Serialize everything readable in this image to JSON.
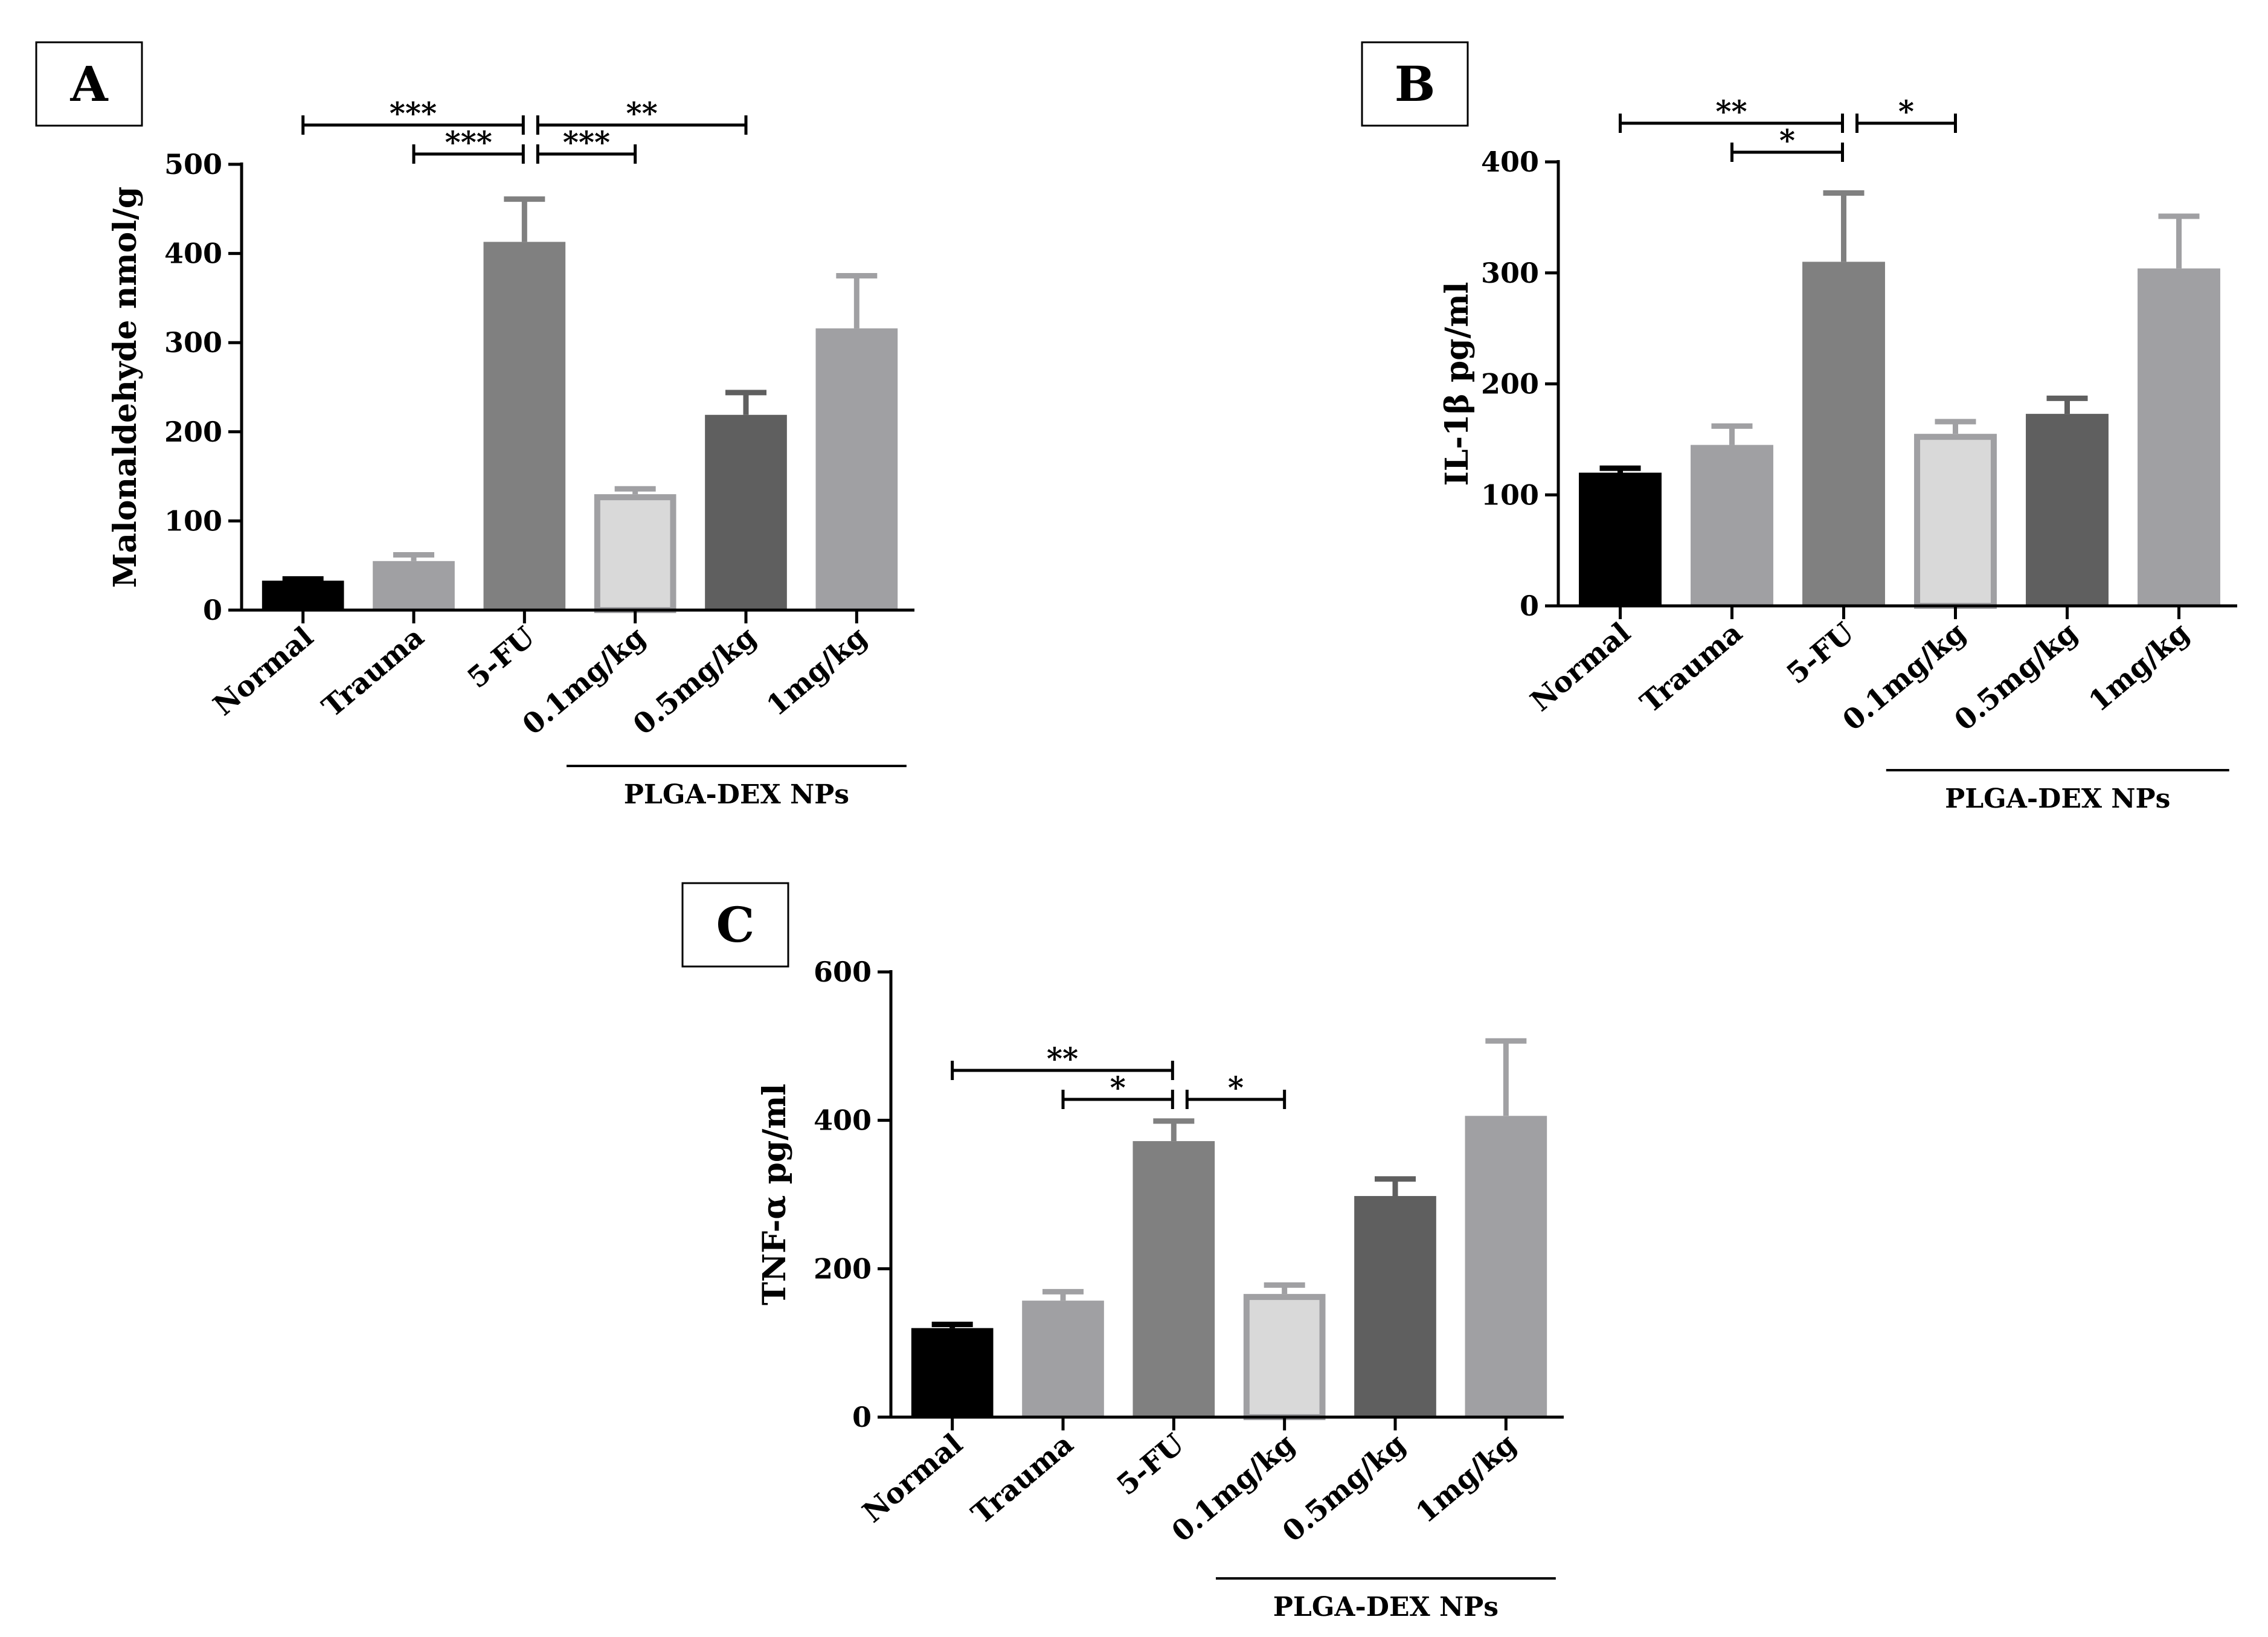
{
  "chart_data": [
    {
      "panel": "A",
      "type": "bar",
      "ylabel": "Malonaldehyde nmol/g",
      "yticks": [
        "0",
        "100",
        "200",
        "300",
        "400",
        "500"
      ],
      "ylim": [
        0,
        500
      ],
      "categories": [
        "Normal",
        "Trauma",
        "5-FU",
        "0.1mg/kg",
        "0.5mg/kg",
        "1mg/kg"
      ],
      "values": [
        33,
        55,
        413,
        130,
        219,
        316
      ],
      "errors": [
        2,
        7,
        48,
        6,
        25,
        59
      ],
      "colors": [
        "#000000",
        "#a0a0a3",
        "#808080",
        "#d9d9d9",
        "#5f5f5f",
        "#a0a0a3"
      ],
      "outlined": [
        false,
        false,
        false,
        true,
        false,
        false
      ],
      "group_label": "PLGA-DEX NPs",
      "comparisons": [
        {
          "from": 0,
          "to": 2,
          "stars": "***",
          "level": 2
        },
        {
          "from": 1,
          "to": 2,
          "stars": "***",
          "level": 1
        },
        {
          "from": 2,
          "to": 4,
          "stars": "**",
          "level": 2
        },
        {
          "from": 2,
          "to": 3,
          "stars": "***",
          "level": 1
        }
      ]
    },
    {
      "panel": "B",
      "type": "bar",
      "ylabel": "IL-1β  pg/ml",
      "yticks": [
        "0",
        "100",
        "200",
        "300",
        "400"
      ],
      "ylim": [
        0,
        400
      ],
      "categories": [
        "Normal",
        "Trauma",
        "5-FU",
        "0.1mg/kg",
        "0.5mg/kg",
        "1mg/kg"
      ],
      "values": [
        120,
        145,
        310,
        155,
        173,
        304
      ],
      "errors": [
        4,
        17,
        62,
        11,
        14,
        47
      ],
      "colors": [
        "#000000",
        "#a0a0a3",
        "#808080",
        "#d9d9d9",
        "#5f5f5f",
        "#a0a0a3"
      ],
      "outlined": [
        false,
        false,
        false,
        true,
        false,
        false
      ],
      "group_label": "PLGA-DEX NPs",
      "comparisons": [
        {
          "from": 0,
          "to": 2,
          "stars": "**",
          "level": 2
        },
        {
          "from": 1,
          "to": 2,
          "stars": "*",
          "level": 1
        },
        {
          "from": 2,
          "to": 3,
          "stars": "*",
          "level": 2
        }
      ]
    },
    {
      "panel": "C",
      "type": "bar",
      "ylabel": "TNF-α  pg/ml",
      "yticks": [
        "0",
        "200",
        "400",
        "600"
      ],
      "ylim": [
        0,
        600
      ],
      "categories": [
        "Normal",
        "Trauma",
        "5-FU",
        "0.1mg/kg",
        "0.5mg/kg",
        "1mg/kg"
      ],
      "values": [
        120,
        157,
        372,
        166,
        298,
        406
      ],
      "errors": [
        5,
        12,
        27,
        12,
        23,
        101
      ],
      "colors": [
        "#000000",
        "#a0a0a3",
        "#808080",
        "#d9d9d9",
        "#5f5f5f",
        "#a0a0a3"
      ],
      "outlined": [
        false,
        false,
        false,
        true,
        false,
        false
      ],
      "group_label": "PLGA-DEX NPs",
      "comparisons": [
        {
          "from": 0,
          "to": 2,
          "stars": "**",
          "level": 2
        },
        {
          "from": 1,
          "to": 2,
          "stars": "*",
          "level": 1
        },
        {
          "from": 2,
          "to": 3,
          "stars": "*",
          "level": 1
        }
      ]
    }
  ]
}
